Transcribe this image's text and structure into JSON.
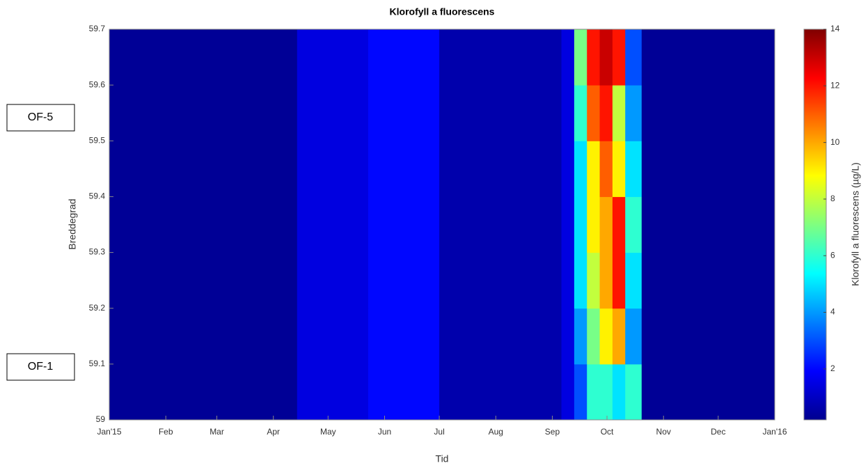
{
  "chart_data": {
    "type": "contour",
    "title": "Klorofyll a fluorescens",
    "x_label": "Tid",
    "y_label": "Breddegrad",
    "colorbar_label": "Klorofyll a fluorescens (µg/L)",
    "annotations": [
      "OF-5",
      "OF-1"
    ],
    "x_edges": [
      "2015-01-01",
      "2015-04-14",
      "2015-05-23",
      "2015-07-01",
      "2015-09-06",
      "2015-09-13",
      "2015-09-20",
      "2015-09-27",
      "2015-10-04",
      "2015-10-11",
      "2015-10-20",
      "2016-01-01"
    ],
    "y_edges": [
      59,
      59.1,
      59.2,
      59.3,
      59.4,
      59.5,
      59.6,
      59.7
    ],
    "z": [
      [
        0.5,
        1.5,
        2,
        0.8,
        1.5,
        3,
        6,
        6,
        5,
        6,
        0.5
      ],
      [
        0.5,
        1.5,
        2,
        0.8,
        1.5,
        4,
        7,
        9,
        10,
        4,
        0.5
      ],
      [
        0.5,
        1.5,
        2,
        0.8,
        1.5,
        5,
        8,
        10,
        12,
        5,
        0.5
      ],
      [
        0.5,
        1.5,
        2,
        0.8,
        1.5,
        5,
        9,
        10,
        12,
        6,
        0.5
      ],
      [
        0.5,
        1.5,
        2,
        0.8,
        1.5,
        5,
        9,
        11,
        9,
        5,
        0.5
      ],
      [
        0.5,
        1.5,
        2,
        0.8,
        1.5,
        6,
        11,
        12,
        8,
        4,
        0.5
      ],
      [
        0.5,
        1.5,
        2,
        0.8,
        1.5,
        7,
        12,
        13,
        12,
        3,
        0.5
      ]
    ],
    "xlim": [
      "2015-01-01",
      "2016-01-01"
    ],
    "xticks": [
      {
        "value": "2015-01-01",
        "label": "Jan'15"
      },
      {
        "value": "2015-02-01",
        "label": "Feb"
      },
      {
        "value": "2015-03-01",
        "label": "Mar"
      },
      {
        "value": "2015-04-01",
        "label": "Apr"
      },
      {
        "value": "2015-05-01",
        "label": "May"
      },
      {
        "value": "2015-06-01",
        "label": "Jun"
      },
      {
        "value": "2015-07-01",
        "label": "Jul"
      },
      {
        "value": "2015-08-01",
        "label": "Aug"
      },
      {
        "value": "2015-09-01",
        "label": "Sep"
      },
      {
        "value": "2015-10-01",
        "label": "Oct"
      },
      {
        "value": "2015-11-01",
        "label": "Nov"
      },
      {
        "value": "2015-12-01",
        "label": "Dec"
      },
      {
        "value": "2016-01-01",
        "label": "Jan'16"
      }
    ],
    "ylim": [
      59,
      59.7
    ],
    "yticks": [
      59,
      59.1,
      59.2,
      59.3,
      59.4,
      59.5,
      59.6,
      59.7
    ],
    "clim": [
      0.2,
      14
    ],
    "cticks": [
      2,
      4,
      6,
      8,
      10,
      12,
      14
    ],
    "colormap": "jet"
  }
}
